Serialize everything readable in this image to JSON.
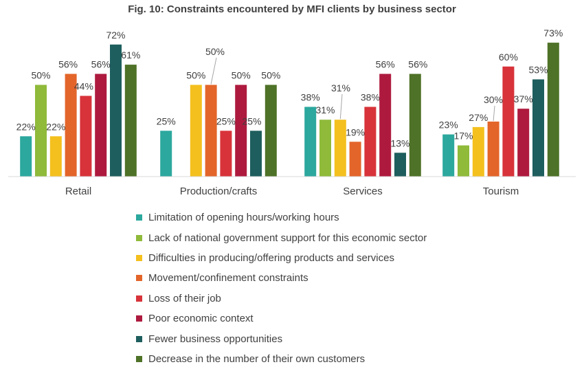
{
  "chart_data": {
    "type": "bar",
    "title": "Fig. 10: Constraints encountered by MFI clients by business sector",
    "xlabel": "",
    "ylabel": "",
    "ylim": [
      0,
      80
    ],
    "grid": false,
    "legend_position": "bottom",
    "value_suffix": "%",
    "categories": [
      "Retail",
      "Production/crafts",
      "Services",
      "Tourism"
    ],
    "series": [
      {
        "name": "Limitation of opening hours/working hours",
        "color": "#2ca89e",
        "values": [
          22,
          25,
          38,
          23
        ]
      },
      {
        "name": "Lack of national government support for this economic sector",
        "color": "#8fba3a",
        "values": [
          50,
          null,
          31,
          17
        ]
      },
      {
        "name": "Difficulties in producing/offering products and services",
        "color": "#f4c01e",
        "values": [
          22,
          50,
          31,
          27
        ]
      },
      {
        "name": "Movement/confinement constraints",
        "color": "#e3652a",
        "values": [
          56,
          50,
          19,
          30
        ]
      },
      {
        "name": "Loss of their job",
        "color": "#d8333a",
        "values": [
          44,
          25,
          38,
          60
        ]
      },
      {
        "name": "Poor economic context",
        "color": "#ae1a3e",
        "values": [
          56,
          50,
          56,
          37
        ]
      },
      {
        "name": "Fewer business opportunities",
        "color": "#1e5e5e",
        "values": [
          72,
          25,
          13,
          53
        ]
      },
      {
        "name": "Decrease in the number of their own customers",
        "color": "#4e7227",
        "values": [
          61,
          50,
          56,
          73
        ]
      }
    ]
  }
}
